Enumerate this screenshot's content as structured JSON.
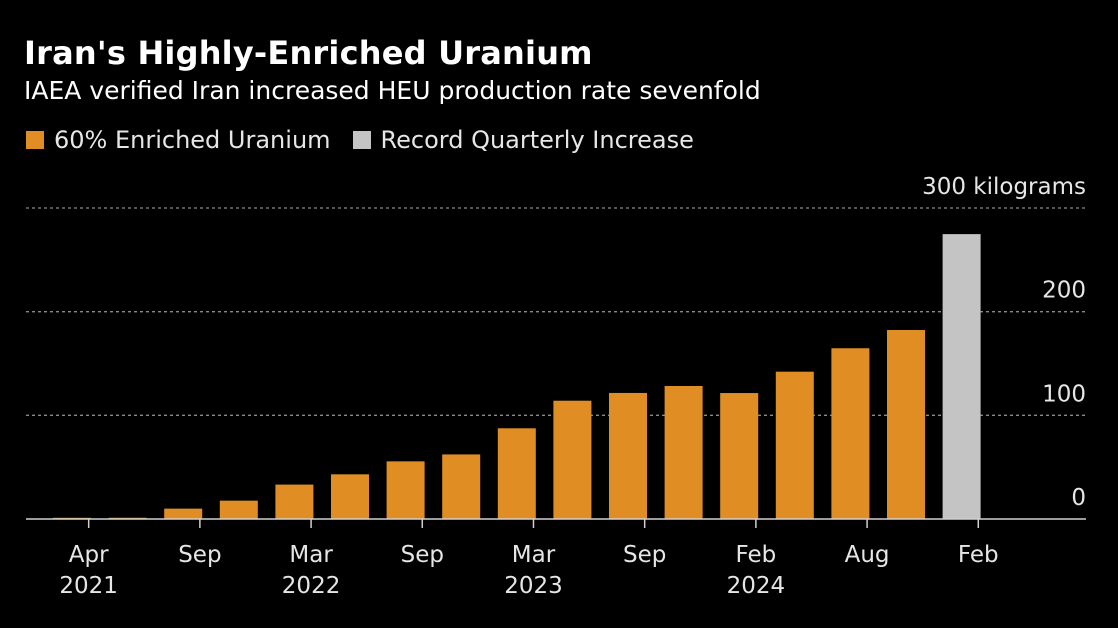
{
  "title": "Iran's Highly-Enriched Uranium",
  "subtitle": "IAEA verified Iran increased HEU production rate sevenfold",
  "colors": {
    "primary": "#e08e24",
    "highlight": "#c4c4c4",
    "grid": "#8a8a8a",
    "background": "#000000"
  },
  "chart_data": {
    "type": "bar",
    "title": "Iran's Highly-Enriched Uranium",
    "subtitle": "IAEA verified Iran increased HEU production rate sevenfold",
    "xlabel": "",
    "ylabel": "kilograms",
    "ylim": [
      0,
      300
    ],
    "yticks": [
      {
        "value": 300,
        "label": "300 kilograms"
      },
      {
        "value": 200,
        "label": "200"
      },
      {
        "value": 100,
        "label": "100"
      },
      {
        "value": 0,
        "label": "0"
      }
    ],
    "grid": true,
    "legend": [
      {
        "name": "60% Enriched Uranium",
        "color": "#e08e24"
      },
      {
        "name": "Record Quarterly Increase",
        "color": "#c4c4c4"
      }
    ],
    "bars": [
      {
        "value": 0.5,
        "series": "60% Enriched Uranium"
      },
      {
        "value": 1.2,
        "series": "60% Enriched Uranium"
      },
      {
        "value": 10,
        "series": "60% Enriched Uranium"
      },
      {
        "value": 17.7,
        "series": "60% Enriched Uranium"
      },
      {
        "value": 33.2,
        "series": "60% Enriched Uranium"
      },
      {
        "value": 43.1,
        "series": "60% Enriched Uranium"
      },
      {
        "value": 55.6,
        "series": "60% Enriched Uranium"
      },
      {
        "value": 62.3,
        "series": "60% Enriched Uranium"
      },
      {
        "value": 87.5,
        "series": "60% Enriched Uranium"
      },
      {
        "value": 114.1,
        "series": "60% Enriched Uranium"
      },
      {
        "value": 121.6,
        "series": "60% Enriched Uranium"
      },
      {
        "value": 128.3,
        "series": "60% Enriched Uranium"
      },
      {
        "value": 121.5,
        "series": "60% Enriched Uranium"
      },
      {
        "value": 142.1,
        "series": "60% Enriched Uranium"
      },
      {
        "value": 164.7,
        "series": "60% Enriched Uranium"
      },
      {
        "value": 182.3,
        "series": "60% Enriched Uranium"
      },
      {
        "value": 274.8,
        "series": "Record Quarterly Increase"
      }
    ],
    "xticks": [
      {
        "bar_index": 0.3,
        "label": "Apr",
        "year": "2021"
      },
      {
        "bar_index": 2.3,
        "label": "Sep",
        "year": ""
      },
      {
        "bar_index": 4.3,
        "label": "Mar",
        "year": "2022"
      },
      {
        "bar_index": 6.3,
        "label": "Sep",
        "year": ""
      },
      {
        "bar_index": 8.3,
        "label": "Mar",
        "year": "2023"
      },
      {
        "bar_index": 10.3,
        "label": "Sep",
        "year": ""
      },
      {
        "bar_index": 12.3,
        "label": "Feb",
        "year": "2024"
      },
      {
        "bar_index": 14.3,
        "label": "Aug",
        "year": ""
      },
      {
        "bar_index": 16.3,
        "label": "Feb",
        "year": ""
      }
    ]
  }
}
